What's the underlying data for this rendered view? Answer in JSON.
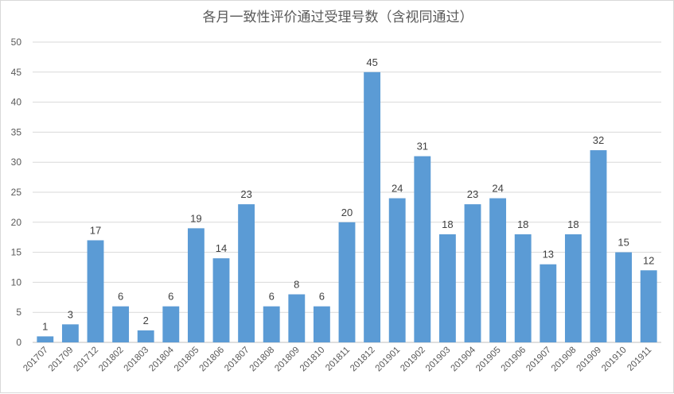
{
  "chart_data": {
    "type": "bar",
    "title": "各月一致性评价通过受理号数（含视同通过）",
    "xlabel": "",
    "ylabel": "",
    "ylim": [
      0,
      50
    ],
    "yticks": [
      0,
      5,
      10,
      15,
      20,
      25,
      30,
      35,
      40,
      45,
      50
    ],
    "grid": true,
    "legend": "none",
    "bar_color": "#5b9bd5",
    "categories": [
      "201707",
      "201709",
      "201712",
      "201802",
      "201803",
      "201804",
      "201805",
      "201806",
      "201807",
      "201808",
      "201809",
      "201810",
      "201811",
      "201812",
      "201901",
      "201902",
      "201903",
      "201904",
      "201905",
      "201906",
      "201907",
      "201908",
      "201909",
      "201910",
      "201911"
    ],
    "values": [
      1,
      3,
      17,
      6,
      2,
      6,
      19,
      14,
      23,
      6,
      8,
      6,
      20,
      45,
      24,
      31,
      18,
      23,
      24,
      18,
      13,
      18,
      32,
      15,
      12
    ]
  }
}
